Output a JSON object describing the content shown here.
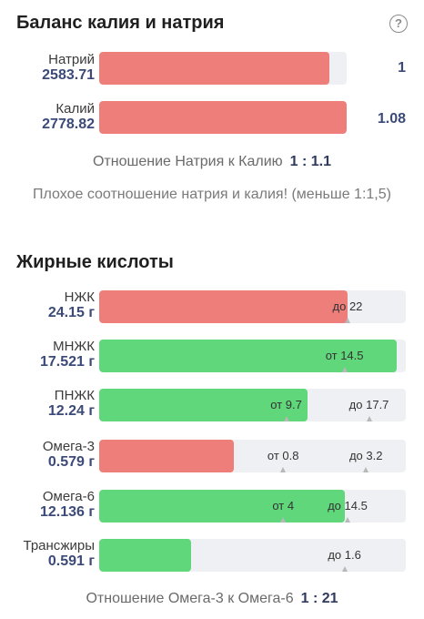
{
  "balance": {
    "title": "Баланс калия и натрия",
    "rows": [
      {
        "name": "Натрий",
        "value": "2583.71",
        "ratio": "1",
        "fill": 0.93
      },
      {
        "name": "Калий",
        "value": "2778.82",
        "ratio": "1.08",
        "fill": 1.0
      }
    ],
    "ratio_label": "Отношение Натрия к Калию",
    "ratio_value": "1 : 1.1",
    "warning": "Плохое соотношение натрия и калия! (меньше 1:1,5)"
  },
  "fats": {
    "title": "Жирные кислоты",
    "rows": [
      {
        "name": "НЖК",
        "value": "24.15 г",
        "color": "#ee7e7a",
        "fill": 0.81,
        "marks": [
          {
            "label": "до 22",
            "pos": 0.81
          }
        ]
      },
      {
        "name": "МНЖК",
        "value": "17.521 г",
        "color": "#5fd77a",
        "fill": 0.97,
        "marks": [
          {
            "label": "от 14.5",
            "pos": 0.8
          }
        ]
      },
      {
        "name": "ПНЖК",
        "value": "12.24 г",
        "color": "#5fd77a",
        "fill": 0.68,
        "marks": [
          {
            "label": "от 9.7",
            "pos": 0.61
          },
          {
            "label": "до 17.7",
            "pos": 0.88
          }
        ]
      },
      {
        "name": "Омега-3",
        "value": "0.579 г",
        "color": "#ee7e7a",
        "fill": 0.44,
        "marks": [
          {
            "label": "от 0.8",
            "pos": 0.6
          },
          {
            "label": "до 3.2",
            "pos": 0.87
          }
        ]
      },
      {
        "name": "Омега-6",
        "value": "12.136 г",
        "color": "#5fd77a",
        "fill": 0.8,
        "marks": [
          {
            "label": "от 4",
            "pos": 0.6
          },
          {
            "label": "до 14.5",
            "pos": 0.81
          }
        ]
      },
      {
        "name": "Трансжиры",
        "value": "0.591 г",
        "color": "#5fd77a",
        "fill": 0.3,
        "marks": [
          {
            "label": "до 1.6",
            "pos": 0.8
          }
        ]
      }
    ],
    "ratio_label": "Отношение Омега-3 к Омега-6",
    "ratio_value": "1 : 21"
  }
}
